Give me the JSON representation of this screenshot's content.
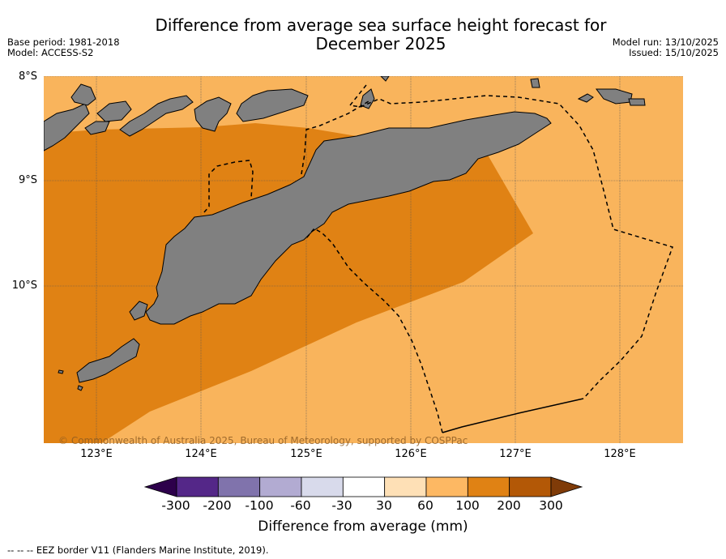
{
  "title": {
    "line1": "Difference from average sea surface height forecast for",
    "line2": "December 2025"
  },
  "meta": {
    "base_period": "Base period: 1981-2018",
    "model": "Model: ACCESS-S2",
    "model_run": "Model run: 13/10/2025",
    "issued": "Issued: 15/10/2025"
  },
  "map": {
    "latitude_labels": [
      "8°S",
      "9°S",
      "10°S"
    ],
    "longitude_labels": [
      "123°E",
      "124°E",
      "125°E",
      "126°E",
      "127°E",
      "128°E"
    ],
    "extent": {
      "lon_min": 122.5,
      "lon_max": 128.6,
      "lat_north": -8.0,
      "lat_south": -11.5
    },
    "copyright": "© Commonwealth of Australia 2025, Bureau of Meteorology, supported by COSPPac",
    "colors": {
      "class_60_100": "#f9b45c",
      "class_100_200": "#e08214",
      "land": "#808080",
      "gridline": "#555555"
    }
  },
  "colorbar": {
    "title": "Difference from average (mm)",
    "ticks": [
      "-300",
      "-200",
      "-100",
      "-60",
      "-30",
      "30",
      "60",
      "100",
      "200",
      "300"
    ],
    "under_color": "#2d004b",
    "over_color": "#7f3b08",
    "colors": [
      "#542788",
      "#8073ac",
      "#b2abd2",
      "#d8daeb",
      "#ffffff",
      "#fee0b6",
      "#fdb863",
      "#e08214",
      "#b35806"
    ]
  },
  "footer": {
    "legend": "--  --  -- EEZ border V11 (Flanders Marine Institute, 2019)."
  }
}
